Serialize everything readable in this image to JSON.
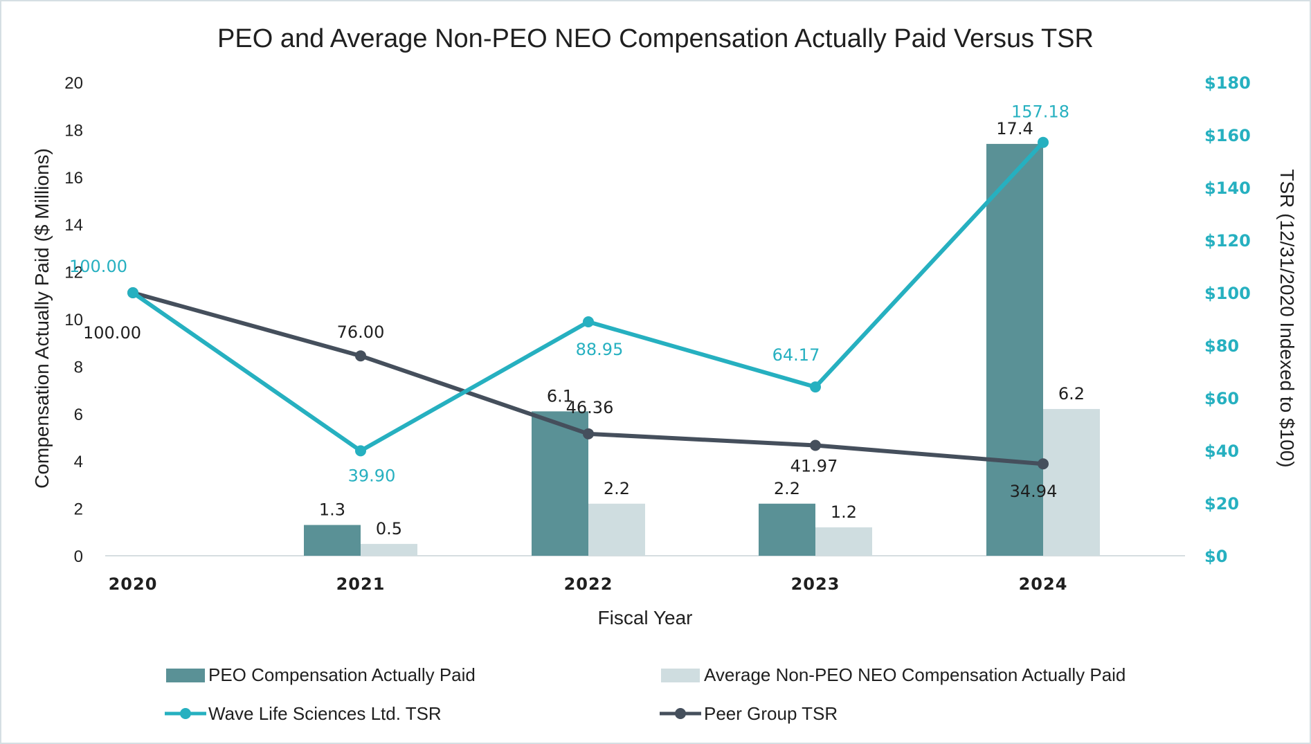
{
  "chart_data": {
    "type": "bar+line",
    "title": "PEO and Average Non-PEO NEO Compensation Actually Paid Versus TSR",
    "xlabel": "Fiscal Year",
    "ylabel_left": "Compensation Actually Paid ($ Millions)",
    "ylabel_right": "TSR (12/31/2020 Indexed to $100)",
    "categories": [
      "2020",
      "2021",
      "2022",
      "2023",
      "2024"
    ],
    "ylim_left": [
      0,
      20
    ],
    "ylim_right": [
      0,
      180
    ],
    "yticks_left": [
      "0",
      "2",
      "4",
      "6",
      "8",
      "10",
      "12",
      "14",
      "16",
      "18",
      "20"
    ],
    "yticks_right": [
      "$0",
      "$20",
      "$40",
      "$60",
      "$80",
      "$100",
      "$120",
      "$140",
      "$160",
      "$180"
    ],
    "bar_series": [
      {
        "name": "PEO Compensation Actually Paid",
        "color": "#5a9196",
        "values": [
          null,
          1.3,
          6.1,
          2.2,
          17.4
        ],
        "labels": [
          "",
          "1.3",
          "6.1",
          "2.2",
          "17.4"
        ]
      },
      {
        "name": "Average Non-PEO NEO Compensation Actually Paid",
        "color": "#cfdde0",
        "values": [
          null,
          0.5,
          2.2,
          1.2,
          6.2
        ],
        "labels": [
          "",
          "0.5",
          "2.2",
          "1.2",
          "6.2"
        ]
      }
    ],
    "line_series": [
      {
        "name": "Wave Life Sciences Ltd. TSR",
        "color": "#26b0c0",
        "values": [
          100.0,
          39.9,
          88.95,
          64.17,
          157.18
        ],
        "labels": [
          "100.00",
          "39.90",
          "88.95",
          "64.17",
          "157.18"
        ]
      },
      {
        "name": "Peer Group TSR",
        "color": "#454f5c",
        "values": [
          100.0,
          76.0,
          46.36,
          41.97,
          34.94
        ],
        "labels": [
          "100.00",
          "76.00",
          "46.36",
          "41.97",
          "34.94"
        ]
      }
    ],
    "grid": false,
    "legend_position": "bottom"
  }
}
